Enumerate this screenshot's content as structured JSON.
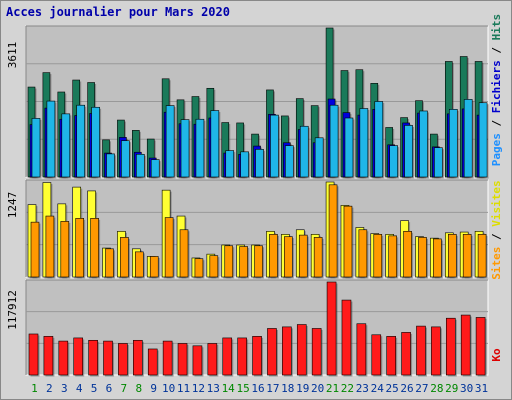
{
  "title": "Acces journalier pour Mars 2020",
  "colors": {
    "background": "#d4d4d4",
    "plot_background": "#c0c0c0",
    "hits": "#1a7a5a",
    "files": "#1e90ff",
    "files_highlight": "#0000dd",
    "pages": "#1fb6e8",
    "visits": "#ffff33",
    "sites": "#ff9900",
    "kb": "#ff1a1a",
    "weekend_label": "#008800",
    "weekday_label": "#003399"
  },
  "chart_data": [
    {
      "type": "bar",
      "panel": "top",
      "ylabel": "3611",
      "ymax": 3611,
      "right_label": {
        "parts": [
          {
            "text": "Pages",
            "color": "#1e90ff"
          },
          {
            "text": " / ",
            "color": "#000000"
          },
          {
            "text": "Fichiers",
            "color": "#0000cc"
          },
          {
            "text": " / ",
            "color": "#000000"
          },
          {
            "text": "Hits",
            "color": "#1a7a5a"
          }
        ]
      },
      "categories": [
        "1",
        "2",
        "3",
        "4",
        "5",
        "6",
        "7",
        "8",
        "9",
        "10",
        "11",
        "12",
        "13",
        "14",
        "15",
        "16",
        "17",
        "18",
        "19",
        "20",
        "21",
        "22",
        "23",
        "24",
        "25",
        "26",
        "27",
        "28",
        "29",
        "30",
        "31"
      ],
      "series": [
        {
          "name": "Hits",
          "values": [
            2180,
            2530,
            2060,
            2350,
            2290,
            900,
            1380,
            1130,
            920,
            2380,
            1870,
            1950,
            2150,
            1320,
            1310,
            1040,
            2110,
            1480,
            1900,
            1730,
            3611,
            2580,
            2600,
            2270,
            1200,
            1440,
            1850,
            1040,
            2800,
            2920,
            2800
          ]
        },
        {
          "name": "Fichiers",
          "values": [
            1270,
            1670,
            1400,
            1490,
            1540,
            580,
            960,
            600,
            460,
            1570,
            1290,
            1280,
            1430,
            580,
            550,
            750,
            1520,
            830,
            1150,
            830,
            1890,
            1560,
            1500,
            1640,
            780,
            1310,
            1550,
            730,
            1530,
            1650,
            1500
          ]
        },
        {
          "name": "Pages",
          "values": [
            1420,
            1840,
            1530,
            1740,
            1690,
            560,
            880,
            550,
            420,
            1730,
            1390,
            1400,
            1610,
            640,
            610,
            670,
            1500,
            760,
            1230,
            950,
            1740,
            1430,
            1660,
            1830,
            760,
            1250,
            1600,
            710,
            1640,
            1880,
            1800
          ]
        }
      ]
    },
    {
      "type": "bar",
      "panel": "middle",
      "ylabel": "1247",
      "ymax": 1247,
      "right_label": {
        "parts": [
          {
            "text": "Sites",
            "color": "#ff9900"
          },
          {
            "text": " / ",
            "color": "#000000"
          },
          {
            "text": "Visites",
            "color": "#dddd00"
          }
        ]
      },
      "categories": [
        "1",
        "2",
        "3",
        "4",
        "5",
        "6",
        "7",
        "8",
        "9",
        "10",
        "11",
        "12",
        "13",
        "14",
        "15",
        "16",
        "17",
        "18",
        "19",
        "20",
        "21",
        "22",
        "23",
        "24",
        "25",
        "26",
        "27",
        "28",
        "29",
        "30",
        "31"
      ],
      "series": [
        {
          "name": "Visites",
          "values": [
            950,
            1240,
            960,
            1180,
            1130,
            380,
            600,
            370,
            270,
            1140,
            800,
            250,
            300,
            420,
            420,
            420,
            600,
            560,
            620,
            560,
            1247,
            940,
            650,
            570,
            560,
            740,
            530,
            510,
            580,
            590,
            600
          ]
        },
        {
          "name": "Sites",
          "values": [
            720,
            800,
            730,
            770,
            770,
            370,
            520,
            330,
            270,
            780,
            620,
            240,
            280,
            410,
            400,
            410,
            560,
            530,
            550,
            520,
            1210,
            930,
            620,
            560,
            540,
            600,
            520,
            500,
            560,
            560,
            560
          ]
        }
      ]
    },
    {
      "type": "bar",
      "panel": "bottom",
      "ylabel": "117912",
      "ymax": 117912,
      "right_label": {
        "parts": [
          {
            "text": "Ko",
            "color": "#dd0000"
          }
        ]
      },
      "categories": [
        "1",
        "2",
        "3",
        "4",
        "5",
        "6",
        "7",
        "8",
        "9",
        "10",
        "11",
        "12",
        "13",
        "14",
        "15",
        "16",
        "17",
        "18",
        "19",
        "20",
        "21",
        "22",
        "23",
        "24",
        "25",
        "26",
        "27",
        "28",
        "29",
        "30",
        "31"
      ],
      "series": [
        {
          "name": "Ko",
          "values": [
            52000,
            49000,
            43000,
            47000,
            44000,
            43000,
            40000,
            44000,
            33000,
            43000,
            40000,
            37000,
            40000,
            47000,
            47000,
            49000,
            59000,
            61000,
            64000,
            59000,
            117912,
            95000,
            65000,
            51000,
            49000,
            54000,
            62000,
            61000,
            72000,
            76000,
            73000
          ]
        }
      ]
    }
  ],
  "weekend_days": [
    "1",
    "7",
    "8",
    "14",
    "15",
    "21",
    "22",
    "28",
    "29"
  ]
}
